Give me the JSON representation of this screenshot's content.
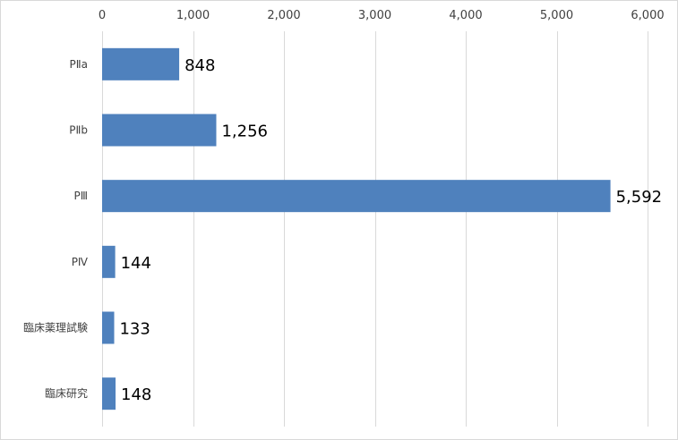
{
  "chart_data": {
    "type": "bar",
    "orientation": "horizontal",
    "title": "",
    "xlabel": "",
    "ylabel": "",
    "categories": [
      "PⅡa",
      "PⅡb",
      "PⅢ",
      "PⅣ",
      "臨床薬理試験",
      "臨床研究"
    ],
    "values": [
      848,
      1256,
      5592,
      144,
      133,
      148
    ],
    "value_labels": [
      "848",
      "1,256",
      "5,592",
      "144",
      "133",
      "148"
    ],
    "xlim": [
      0,
      6000
    ],
    "ticks": [
      0,
      1000,
      2000,
      3000,
      4000,
      5000,
      6000
    ],
    "tick_labels": [
      "0",
      "1,000",
      "2,000",
      "3,000",
      "4,000",
      "5,000",
      "6,000"
    ],
    "value_axis_position": "top",
    "grid": true,
    "legend": "none",
    "bar_color": "#4f81bd"
  }
}
